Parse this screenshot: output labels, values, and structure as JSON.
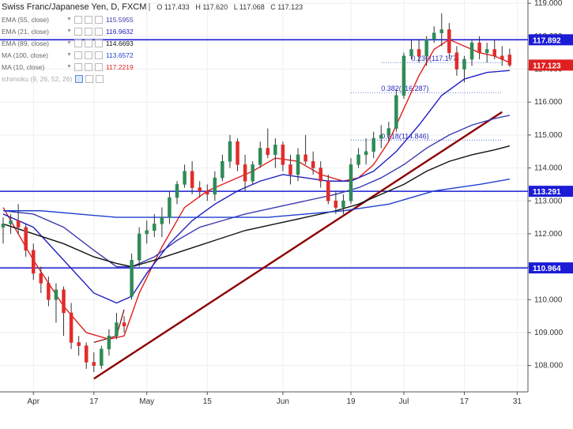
{
  "title": "Swiss Franc/Japanese Yen, D, FXCM",
  "ohlc": {
    "o": "O 117.433",
    "h": "H 117.620",
    "l": "L 117.068",
    "c": "C 117.123"
  },
  "indicators": [
    {
      "label": "EMA (55, close)",
      "value": "115.5955",
      "color": "#3b3bb0"
    },
    {
      "label": "EMA (21, close)",
      "value": "116.9632",
      "color": "#2020c0"
    },
    {
      "label": "EMA (89, close)",
      "value": "114.6693",
      "color": "#111111"
    },
    {
      "label": "MA (100, close)",
      "value": "113.6572",
      "color": "#1f3fcf"
    },
    {
      "label": "MA (10, close)",
      "value": "117.2219",
      "color": "#e02020"
    },
    {
      "label": "Ichimoku (9, 26, 52, 26)",
      "value": "",
      "color": "#aaaaaa"
    }
  ],
  "chart_data": {
    "type": "candlestick",
    "ylim": [
      107.2,
      119.1
    ],
    "xlim": [
      0,
      69
    ],
    "x_ticks": [
      {
        "i": 4,
        "label": "Apr"
      },
      {
        "i": 12,
        "label": "17"
      },
      {
        "i": 19,
        "label": "May"
      },
      {
        "i": 27,
        "label": "15"
      },
      {
        "i": 37,
        "label": "Jun"
      },
      {
        "i": 46,
        "label": "19"
      },
      {
        "i": 53,
        "label": "Jul"
      },
      {
        "i": 61,
        "label": "17"
      },
      {
        "i": 68,
        "label": "31"
      }
    ],
    "y_ticks": [
      108,
      109,
      110,
      111,
      112,
      113,
      114,
      115,
      116,
      117,
      118,
      119
    ],
    "candles": [
      [
        112.2,
        112.5,
        111.7,
        112.3
      ],
      [
        112.3,
        112.6,
        112.0,
        112.4
      ],
      [
        112.4,
        112.9,
        112.0,
        112.2
      ],
      [
        112.2,
        112.3,
        111.3,
        111.5
      ],
      [
        111.5,
        111.7,
        110.6,
        110.8
      ],
      [
        110.8,
        111.0,
        110.2,
        110.5
      ],
      [
        110.5,
        110.7,
        109.8,
        110.0
      ],
      [
        110.0,
        110.5,
        109.3,
        110.3
      ],
      [
        110.3,
        110.4,
        108.9,
        109.6
      ],
      [
        109.6,
        109.9,
        108.5,
        108.7
      ],
      [
        108.7,
        108.9,
        108.3,
        108.6
      ],
      [
        108.6,
        108.7,
        107.9,
        108.1
      ],
      [
        108.1,
        108.4,
        107.8,
        108.0
      ],
      [
        108.0,
        108.6,
        107.9,
        108.5
      ],
      [
        108.5,
        109.1,
        108.3,
        108.9
      ],
      [
        108.9,
        109.6,
        108.8,
        109.3
      ],
      [
        109.3,
        109.5,
        109.0,
        109.2
      ],
      [
        110.1,
        111.4,
        110.0,
        111.2
      ],
      [
        111.2,
        112.2,
        111.0,
        112.0
      ],
      [
        112.0,
        112.4,
        111.7,
        112.1
      ],
      [
        112.1,
        112.6,
        111.9,
        112.3
      ],
      [
        112.3,
        112.8,
        111.9,
        112.5
      ],
      [
        112.5,
        113.3,
        112.3,
        113.1
      ],
      [
        113.1,
        113.6,
        112.9,
        113.5
      ],
      [
        113.5,
        114.1,
        113.4,
        113.9
      ],
      [
        113.9,
        114.2,
        113.2,
        113.4
      ],
      [
        113.4,
        113.6,
        113.1,
        113.3
      ],
      [
        113.3,
        113.5,
        113.0,
        113.2
      ],
      [
        113.2,
        113.9,
        113.0,
        113.7
      ],
      [
        113.7,
        114.4,
        113.6,
        114.2
      ],
      [
        114.2,
        115.0,
        114.0,
        114.8
      ],
      [
        114.8,
        114.9,
        113.9,
        114.1
      ],
      [
        114.1,
        114.4,
        113.3,
        113.6
      ],
      [
        113.6,
        114.2,
        113.5,
        114.1
      ],
      [
        114.1,
        114.8,
        114.0,
        114.6
      ],
      [
        114.6,
        115.2,
        114.3,
        114.4
      ],
      [
        114.4,
        114.9,
        114.0,
        114.7
      ],
      [
        114.7,
        114.8,
        113.9,
        114.1
      ],
      [
        114.1,
        114.4,
        113.5,
        113.8
      ],
      [
        113.8,
        114.6,
        113.6,
        114.4
      ],
      [
        114.4,
        115.0,
        114.1,
        114.2
      ],
      [
        114.2,
        114.5,
        113.8,
        114.0
      ],
      [
        114.0,
        114.2,
        113.4,
        113.6
      ],
      [
        113.6,
        113.8,
        112.9,
        113.0
      ],
      [
        113.0,
        113.3,
        112.6,
        112.8
      ],
      [
        112.8,
        113.2,
        112.6,
        113.0
      ],
      [
        113.0,
        114.3,
        112.9,
        114.1
      ],
      [
        114.1,
        114.6,
        114.0,
        114.4
      ],
      [
        114.4,
        114.9,
        114.1,
        114.5
      ],
      [
        114.5,
        115.1,
        114.3,
        114.9
      ],
      [
        114.9,
        115.3,
        114.6,
        115.0
      ],
      [
        115.0,
        115.4,
        114.8,
        115.2
      ],
      [
        115.2,
        116.4,
        115.1,
        116.2
      ],
      [
        116.2,
        117.5,
        116.1,
        117.4
      ],
      [
        117.4,
        117.9,
        117.3,
        117.6
      ],
      [
        117.6,
        117.9,
        117.2,
        117.4
      ],
      [
        117.4,
        118.0,
        117.1,
        117.9
      ],
      [
        117.9,
        118.3,
        117.8,
        118.1
      ],
      [
        118.1,
        118.7,
        117.7,
        118.2
      ],
      [
        118.2,
        118.4,
        117.3,
        117.5
      ],
      [
        117.5,
        117.7,
        116.8,
        117.0
      ],
      [
        117.0,
        117.4,
        116.6,
        117.3
      ],
      [
        117.3,
        117.9,
        117.1,
        117.8
      ],
      [
        117.8,
        118.0,
        117.3,
        117.5
      ],
      [
        117.5,
        117.8,
        117.2,
        117.6
      ],
      [
        117.6,
        117.9,
        117.3,
        117.4
      ],
      [
        117.4,
        117.7,
        117.1,
        117.3
      ],
      [
        117.433,
        117.62,
        117.068,
        117.123
      ]
    ],
    "ma_series": [
      {
        "color": "#e02020",
        "points": [
          [
            0,
            112.8
          ],
          [
            4,
            111.2
          ],
          [
            8,
            109.8
          ],
          [
            11,
            109.0
          ],
          [
            14,
            108.8
          ],
          [
            16,
            108.9
          ],
          [
            18,
            110.2
          ],
          [
            21,
            111.6
          ],
          [
            24,
            112.8
          ],
          [
            27,
            113.3
          ],
          [
            30,
            113.6
          ],
          [
            33,
            113.9
          ],
          [
            36,
            114.3
          ],
          [
            39,
            114.2
          ],
          [
            42,
            113.8
          ],
          [
            45,
            113.6
          ],
          [
            47,
            113.7
          ],
          [
            49,
            114.1
          ],
          [
            51,
            114.8
          ],
          [
            53,
            115.8
          ],
          [
            55,
            116.8
          ],
          [
            57,
            117.6
          ],
          [
            59,
            117.9
          ],
          [
            61,
            117.7
          ],
          [
            63,
            117.5
          ],
          [
            65,
            117.4
          ],
          [
            67,
            117.2
          ]
        ]
      },
      {
        "color": "#2020c0",
        "points": [
          [
            0,
            112.6
          ],
          [
            4,
            112.2
          ],
          [
            8,
            111.2
          ],
          [
            12,
            110.2
          ],
          [
            15,
            109.9
          ],
          [
            17,
            110.1
          ],
          [
            19,
            110.8
          ],
          [
            22,
            111.7
          ],
          [
            25,
            112.4
          ],
          [
            28,
            112.9
          ],
          [
            31,
            113.3
          ],
          [
            34,
            113.6
          ],
          [
            37,
            113.8
          ],
          [
            40,
            113.7
          ],
          [
            43,
            113.6
          ],
          [
            46,
            113.6
          ],
          [
            49,
            113.9
          ],
          [
            52,
            114.5
          ],
          [
            55,
            115.3
          ],
          [
            58,
            116.2
          ],
          [
            61,
            116.7
          ],
          [
            64,
            116.9
          ],
          [
            67,
            116.96
          ]
        ]
      },
      {
        "color": "#3b3bb0",
        "points": [
          [
            0,
            112.7
          ],
          [
            4,
            112.6
          ],
          [
            8,
            112.2
          ],
          [
            12,
            111.5
          ],
          [
            15,
            111.0
          ],
          [
            17,
            111.0
          ],
          [
            20,
            111.3
          ],
          [
            23,
            111.8
          ],
          [
            26,
            112.2
          ],
          [
            29,
            112.4
          ],
          [
            32,
            112.6
          ],
          [
            36,
            112.8
          ],
          [
            40,
            113.0
          ],
          [
            44,
            113.2
          ],
          [
            47,
            113.4
          ],
          [
            50,
            113.7
          ],
          [
            53,
            114.1
          ],
          [
            56,
            114.6
          ],
          [
            59,
            115.0
          ],
          [
            62,
            115.3
          ],
          [
            65,
            115.5
          ],
          [
            67,
            115.6
          ]
        ]
      },
      {
        "color": "#111111",
        "points": [
          [
            0,
            112.3
          ],
          [
            4,
            112.0
          ],
          [
            8,
            111.7
          ],
          [
            12,
            111.3
          ],
          [
            15,
            111.1
          ],
          [
            17,
            111.0
          ],
          [
            20,
            111.2
          ],
          [
            24,
            111.5
          ],
          [
            28,
            111.8
          ],
          [
            32,
            112.1
          ],
          [
            36,
            112.3
          ],
          [
            40,
            112.5
          ],
          [
            44,
            112.7
          ],
          [
            47,
            112.9
          ],
          [
            50,
            113.2
          ],
          [
            53,
            113.5
          ],
          [
            56,
            113.9
          ],
          [
            59,
            114.2
          ],
          [
            62,
            114.4
          ],
          [
            65,
            114.55
          ],
          [
            67,
            114.67
          ]
        ]
      },
      {
        "color": "#1f3fcf",
        "points": [
          [
            0,
            112.7
          ],
          [
            5,
            112.7
          ],
          [
            10,
            112.6
          ],
          [
            15,
            112.5
          ],
          [
            20,
            112.5
          ],
          [
            25,
            112.5
          ],
          [
            30,
            112.5
          ],
          [
            35,
            112.5
          ],
          [
            40,
            112.6
          ],
          [
            45,
            112.7
          ],
          [
            48,
            112.8
          ],
          [
            51,
            112.9
          ],
          [
            54,
            113.1
          ],
          [
            57,
            113.3
          ],
          [
            60,
            113.4
          ],
          [
            63,
            113.5
          ],
          [
            67,
            113.66
          ]
        ]
      }
    ],
    "hlines": [
      {
        "y": 117.892,
        "label": "117.892",
        "color": "#1c1cd6"
      },
      {
        "y": 113.291,
        "label": "113.291",
        "color": "#1c1cd6"
      },
      {
        "y": 110.964,
        "label": "110.964",
        "color": "#1c1cd6"
      }
    ],
    "current_price": {
      "y": 117.123,
      "label": "117.123",
      "color": "#e02020"
    },
    "trendline": {
      "x1": 12,
      "y1": 107.6,
      "x2": 66,
      "y2": 115.7,
      "color": "#8b0000"
    },
    "small_channel": {
      "points": [
        [
          12,
          108.7
        ],
        [
          15,
          108.9
        ],
        [
          16,
          109.7
        ]
      ],
      "color": "#8b0000"
    },
    "fib_levels": [
      {
        "y": 117.2,
        "x_start": 50,
        "label": "0.236(117.177)"
      },
      {
        "y": 116.287,
        "x_start": 46,
        "label": "0.382(116.287)"
      },
      {
        "y": 114.846,
        "x_start": 46,
        "label": "0.618(114.846)"
      }
    ]
  }
}
